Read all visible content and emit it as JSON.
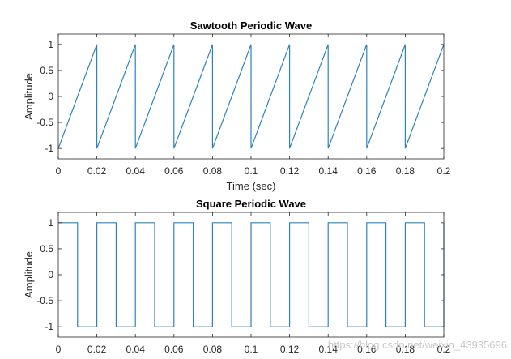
{
  "colors": {
    "line": "#2b83ba",
    "axes": "#262626",
    "background": "#ffffff"
  },
  "chart_data": [
    {
      "type": "line",
      "title": "Sawtooth Periodic Wave",
      "xlabel": "Time (sec)",
      "ylabel": "Amplitude",
      "xlim": [
        0,
        0.2
      ],
      "ylim": [
        -1.2,
        1.2
      ],
      "xticks": [
        0,
        0.02,
        0.04,
        0.06,
        0.08,
        0.1,
        0.12,
        0.14,
        0.16,
        0.18,
        0.2
      ],
      "xtick_labels": [
        "0",
        "0.02",
        "0.04",
        "0.06",
        "0.08",
        "0.1",
        "0.12",
        "0.14",
        "0.16",
        "0.18",
        "0.2"
      ],
      "yticks": [
        -1,
        -0.5,
        0,
        0.5,
        1
      ],
      "ytick_labels": [
        "-1",
        "-0.5",
        "0",
        "0.5",
        "1"
      ],
      "grid": false,
      "series": [
        {
          "x": [
            0,
            0.02,
            0.02,
            0.04,
            0.04,
            0.06,
            0.06,
            0.08,
            0.08,
            0.1,
            0.1,
            0.12,
            0.12,
            0.14,
            0.14,
            0.16,
            0.16,
            0.18,
            0.18,
            0.2
          ],
          "y": [
            -1,
            1,
            -1,
            1,
            -1,
            1,
            -1,
            1,
            -1,
            1,
            -1,
            1,
            -1,
            1,
            -1,
            1,
            -1,
            1,
            -1,
            1
          ]
        }
      ]
    },
    {
      "type": "line",
      "title": "Square Periodic Wave",
      "xlabel": "",
      "ylabel": "Amplitude",
      "xlim": [
        0,
        0.2
      ],
      "ylim": [
        -1.2,
        1.2
      ],
      "xticks": [
        0,
        0.02,
        0.04,
        0.06,
        0.08,
        0.1,
        0.12,
        0.14,
        0.16,
        0.18,
        0.2
      ],
      "xtick_labels": [
        "0",
        "0.02",
        "0.04",
        "0.06",
        "0.08",
        "0.1",
        "0.12",
        "0.14",
        "0.16",
        "0.18",
        "0.2"
      ],
      "yticks": [
        -1,
        -0.5,
        0,
        0.5,
        1
      ],
      "ytick_labels": [
        "-1",
        "-0.5",
        "0",
        "0.5",
        "1"
      ],
      "grid": false,
      "series": [
        {
          "x": [
            0,
            0.01,
            0.01,
            0.02,
            0.02,
            0.03,
            0.03,
            0.04,
            0.04,
            0.05,
            0.05,
            0.06,
            0.06,
            0.07,
            0.07,
            0.08,
            0.08,
            0.09,
            0.09,
            0.1,
            0.1,
            0.11,
            0.11,
            0.12,
            0.12,
            0.13,
            0.13,
            0.14,
            0.14,
            0.15,
            0.15,
            0.16,
            0.16,
            0.17,
            0.17,
            0.18,
            0.18,
            0.19,
            0.19,
            0.2,
            0.2
          ],
          "y": [
            1,
            1,
            -1,
            -1,
            1,
            1,
            -1,
            -1,
            1,
            1,
            -1,
            -1,
            1,
            1,
            -1,
            -1,
            1,
            1,
            -1,
            -1,
            1,
            1,
            -1,
            -1,
            1,
            1,
            -1,
            -1,
            1,
            1,
            -1,
            -1,
            1,
            1,
            -1,
            -1,
            1,
            1,
            -1,
            -1,
            1
          ]
        }
      ]
    }
  ],
  "watermark": "https://blog.csdn.net/weixin_43935696"
}
